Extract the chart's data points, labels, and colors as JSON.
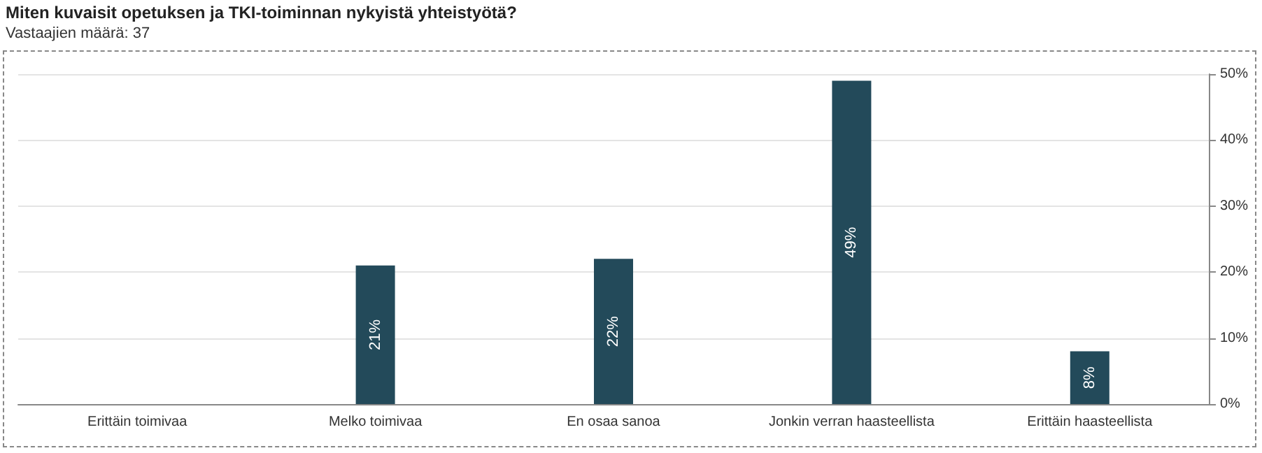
{
  "chart_data": {
    "type": "bar",
    "title": "Miten kuvaisit opetuksen ja TKI-toiminnan nykyistä yhteistyötä?",
    "subtitle": "Vastaajien määrä: 37",
    "categories": [
      "Erittäin toimivaa",
      "Melko toimivaa",
      "En osaa sanoa",
      "Jonkin verran haasteellista",
      "Erittäin haasteellista"
    ],
    "values": [
      0,
      21,
      22,
      49,
      8
    ],
    "value_labels": [
      null,
      "21%",
      "22%",
      "49%",
      "8%"
    ],
    "color": "#234a5a",
    "ylim": [
      0,
      50
    ],
    "yticks": [
      {
        "value": 0,
        "label": "0%"
      },
      {
        "value": 10,
        "label": "10%"
      },
      {
        "value": 20,
        "label": "20%"
      },
      {
        "value": 30,
        "label": "30%"
      },
      {
        "value": 40,
        "label": "40%"
      },
      {
        "value": 50,
        "label": "50%"
      }
    ],
    "grid": "y"
  }
}
